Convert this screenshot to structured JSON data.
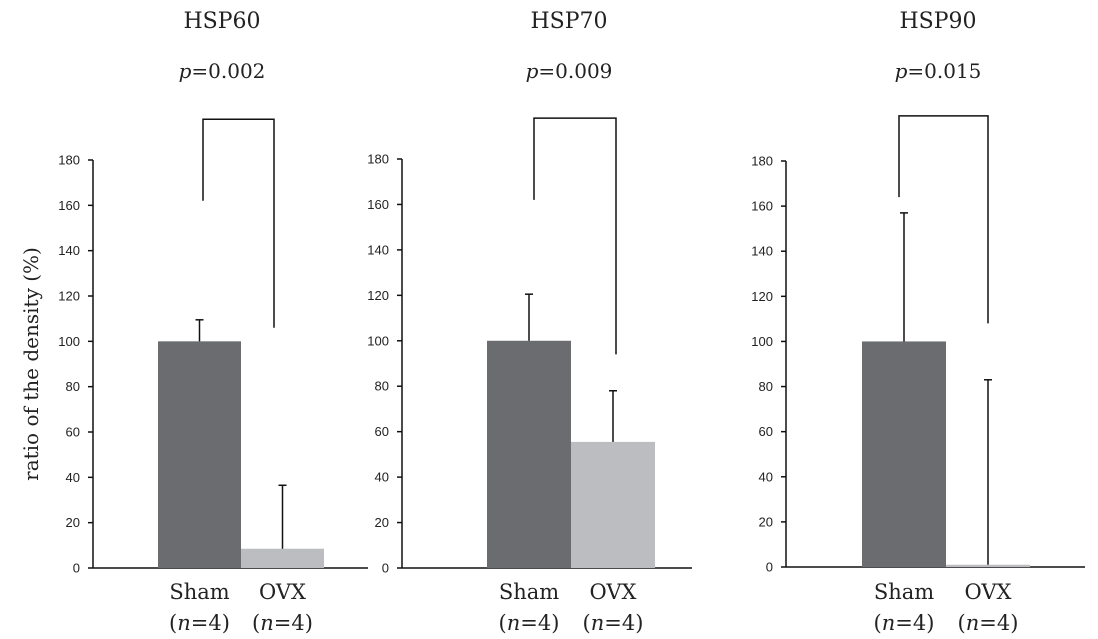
{
  "ylabel": "ratio of the density (%)",
  "chart_data": [
    {
      "type": "bar",
      "title": "HSP60",
      "pvalue": "0.002",
      "categories": [
        "Sham",
        "OVX"
      ],
      "n_labels": [
        "4",
        "4"
      ],
      "values": [
        100,
        8.5
      ],
      "errors": [
        9.5,
        28
      ],
      "ylim": [
        0,
        180
      ],
      "yticks": [
        0,
        20,
        40,
        60,
        80,
        100,
        120,
        140,
        160,
        180
      ],
      "bracket_y": [
        162,
        106,
        198
      ]
    },
    {
      "type": "bar",
      "title": "HSP70",
      "pvalue": "0.009",
      "categories": [
        "Sham",
        "OVX"
      ],
      "n_labels": [
        "4",
        "4"
      ],
      "values": [
        100,
        55.5
      ],
      "errors": [
        20.5,
        22.5
      ],
      "ylim": [
        0,
        180
      ],
      "yticks": [
        0,
        20,
        40,
        60,
        80,
        100,
        120,
        140,
        160,
        180
      ],
      "bracket_y": [
        162,
        94,
        198
      ]
    },
    {
      "type": "bar",
      "title": "HSP90",
      "pvalue": "0.015",
      "categories": [
        "Sham",
        "OVX"
      ],
      "n_labels": [
        "4",
        "4"
      ],
      "values": [
        100,
        1
      ],
      "errors": [
        57,
        82
      ],
      "ylim": [
        0,
        180
      ],
      "yticks": [
        0,
        20,
        40,
        60,
        80,
        100,
        120,
        140,
        160,
        180
      ],
      "bracket_y": [
        164,
        108,
        200
      ]
    }
  ],
  "colors": {
    "sham": "#6b6c70",
    "ovx": "#bcbdc1"
  },
  "prefix": {
    "p": "p",
    "n": "n"
  }
}
